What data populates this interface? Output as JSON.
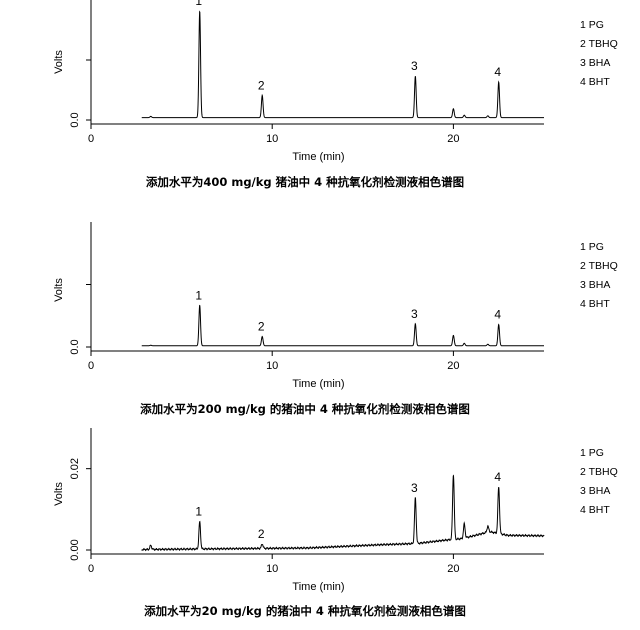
{
  "chart_data": [
    {
      "type": "line",
      "caption": "添加水平为400 mg/kg 猪油中 4 种抗氧化剂检测液相色谱图",
      "xlabel": "Time (min)",
      "ylabel": "Volts",
      "xlim": [
        0,
        25
      ],
      "ylim": [
        0,
        0.1
      ],
      "x_ticks": [
        0,
        10,
        20
      ],
      "y_ticks": [
        {
          "value": 0.0,
          "label": "0.0"
        },
        {
          "value": 0.05,
          "label": ""
        }
      ],
      "legend": [
        "1 PG",
        "2 TBHQ",
        "3 BHA",
        "4 BHT"
      ],
      "legend_position": "right",
      "baseline": 0.002,
      "peaks": [
        {
          "label": "1",
          "x": 6.0,
          "height": 0.0888
        },
        {
          "label": "2",
          "x": 9.45,
          "height": 0.0185
        },
        {
          "label": "3",
          "x": 17.9,
          "height": 0.0346
        },
        {
          "label": "4",
          "x": 22.5,
          "height": 0.0296
        }
      ],
      "minor_peaks": [
        {
          "x": 3.3,
          "height": 0.001
        },
        {
          "x": 20.0,
          "height": 0.0074
        },
        {
          "x": 20.6,
          "height": 0.002
        },
        {
          "x": 21.9,
          "height": 0.0015
        }
      ]
    },
    {
      "type": "line",
      "caption": "添加水平为200 mg/kg 的猪油中 4 种抗氧化剂检测液相色谱图",
      "xlabel": "Time (min)",
      "ylabel": "Volts",
      "xlim": [
        0,
        25
      ],
      "ylim": [
        0,
        0.1
      ],
      "x_ticks": [
        0,
        10,
        20
      ],
      "y_ticks": [
        {
          "value": 0.0,
          "label": "0.0"
        },
        {
          "value": 0.05,
          "label": ""
        }
      ],
      "legend": [
        "1 PG",
        "2 TBHQ",
        "3 BHA",
        "4 BHT"
      ],
      "legend_position": "right",
      "baseline": 0.001,
      "peaks": [
        {
          "label": "1",
          "x": 6.0,
          "height": 0.0324
        },
        {
          "label": "2",
          "x": 9.45,
          "height": 0.0074
        },
        {
          "label": "3",
          "x": 17.9,
          "height": 0.0176
        },
        {
          "label": "4",
          "x": 22.5,
          "height": 0.017
        }
      ],
      "minor_peaks": [
        {
          "x": 3.3,
          "height": 0.0004
        },
        {
          "x": 20.0,
          "height": 0.0083
        },
        {
          "x": 20.6,
          "height": 0.002
        },
        {
          "x": 21.9,
          "height": 0.0012
        }
      ]
    },
    {
      "type": "line",
      "caption": "添加水平为20 mg/kg 的猪油中 4 种抗氧化剂检测液相色谱图",
      "xlabel": "Time (min)",
      "ylabel": "Volts",
      "xlim": [
        0,
        25
      ],
      "ylim": [
        0,
        0.03
      ],
      "x_ticks": [
        0,
        10,
        20
      ],
      "y_ticks": [
        {
          "value": 0.0,
          "label": "0.00"
        },
        {
          "value": 0.02,
          "label": "0.02"
        }
      ],
      "legend": [
        "1 PG",
        "2 TBHQ",
        "3 BHA",
        "4 BHT"
      ],
      "legend_position": "right",
      "baseline": 0.0,
      "drift": [
        [
          0,
          0.0
        ],
        [
          12,
          0.0005
        ],
        [
          16,
          0.0013
        ],
        [
          18,
          0.0016
        ],
        [
          19.5,
          0.0024
        ],
        [
          20.5,
          0.0028
        ],
        [
          22,
          0.0045
        ],
        [
          23,
          0.0036
        ],
        [
          25,
          0.0035
        ]
      ],
      "peaks": [
        {
          "label": "1",
          "x": 6.0,
          "height": 0.0067
        },
        {
          "label": "2",
          "x": 9.45,
          "height": 0.0011
        },
        {
          "label": "3",
          "x": 17.9,
          "height": 0.0112
        },
        {
          "label": "4",
          "x": 22.5,
          "height": 0.0115
        }
      ],
      "minor_peaks": [
        {
          "x": 3.3,
          "height": 0.001
        },
        {
          "x": 20.0,
          "height": 0.016
        },
        {
          "x": 20.6,
          "height": 0.0035
        },
        {
          "x": 21.9,
          "height": 0.0015
        }
      ]
    }
  ]
}
